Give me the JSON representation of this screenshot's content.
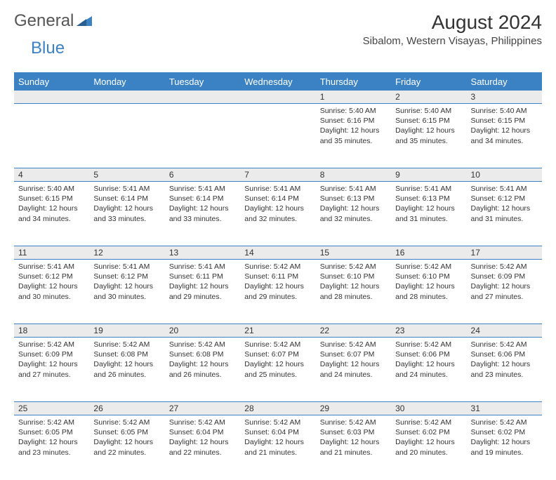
{
  "brand": {
    "general": "General",
    "blue": "Blue"
  },
  "header": {
    "month": "August 2024",
    "location": "Sibalom, Western Visayas, Philippines"
  },
  "colors": {
    "accent": "#3b82c4",
    "daynum_bg": "#ebebeb",
    "text": "#333333",
    "bg": "#ffffff"
  },
  "weekdays": [
    "Sunday",
    "Monday",
    "Tuesday",
    "Wednesday",
    "Thursday",
    "Friday",
    "Saturday"
  ],
  "calendar": {
    "type": "table",
    "first_weekday_index": 4,
    "days": [
      {
        "n": "1",
        "sunrise": "5:40 AM",
        "sunset": "6:16 PM",
        "dl": "12 hours and 35 minutes."
      },
      {
        "n": "2",
        "sunrise": "5:40 AM",
        "sunset": "6:15 PM",
        "dl": "12 hours and 35 minutes."
      },
      {
        "n": "3",
        "sunrise": "5:40 AM",
        "sunset": "6:15 PM",
        "dl": "12 hours and 34 minutes."
      },
      {
        "n": "4",
        "sunrise": "5:40 AM",
        "sunset": "6:15 PM",
        "dl": "12 hours and 34 minutes."
      },
      {
        "n": "5",
        "sunrise": "5:41 AM",
        "sunset": "6:14 PM",
        "dl": "12 hours and 33 minutes."
      },
      {
        "n": "6",
        "sunrise": "5:41 AM",
        "sunset": "6:14 PM",
        "dl": "12 hours and 33 minutes."
      },
      {
        "n": "7",
        "sunrise": "5:41 AM",
        "sunset": "6:14 PM",
        "dl": "12 hours and 32 minutes."
      },
      {
        "n": "8",
        "sunrise": "5:41 AM",
        "sunset": "6:13 PM",
        "dl": "12 hours and 32 minutes."
      },
      {
        "n": "9",
        "sunrise": "5:41 AM",
        "sunset": "6:13 PM",
        "dl": "12 hours and 31 minutes."
      },
      {
        "n": "10",
        "sunrise": "5:41 AM",
        "sunset": "6:12 PM",
        "dl": "12 hours and 31 minutes."
      },
      {
        "n": "11",
        "sunrise": "5:41 AM",
        "sunset": "6:12 PM",
        "dl": "12 hours and 30 minutes."
      },
      {
        "n": "12",
        "sunrise": "5:41 AM",
        "sunset": "6:12 PM",
        "dl": "12 hours and 30 minutes."
      },
      {
        "n": "13",
        "sunrise": "5:41 AM",
        "sunset": "6:11 PM",
        "dl": "12 hours and 29 minutes."
      },
      {
        "n": "14",
        "sunrise": "5:42 AM",
        "sunset": "6:11 PM",
        "dl": "12 hours and 29 minutes."
      },
      {
        "n": "15",
        "sunrise": "5:42 AM",
        "sunset": "6:10 PM",
        "dl": "12 hours and 28 minutes."
      },
      {
        "n": "16",
        "sunrise": "5:42 AM",
        "sunset": "6:10 PM",
        "dl": "12 hours and 28 minutes."
      },
      {
        "n": "17",
        "sunrise": "5:42 AM",
        "sunset": "6:09 PM",
        "dl": "12 hours and 27 minutes."
      },
      {
        "n": "18",
        "sunrise": "5:42 AM",
        "sunset": "6:09 PM",
        "dl": "12 hours and 27 minutes."
      },
      {
        "n": "19",
        "sunrise": "5:42 AM",
        "sunset": "6:08 PM",
        "dl": "12 hours and 26 minutes."
      },
      {
        "n": "20",
        "sunrise": "5:42 AM",
        "sunset": "6:08 PM",
        "dl": "12 hours and 26 minutes."
      },
      {
        "n": "21",
        "sunrise": "5:42 AM",
        "sunset": "6:07 PM",
        "dl": "12 hours and 25 minutes."
      },
      {
        "n": "22",
        "sunrise": "5:42 AM",
        "sunset": "6:07 PM",
        "dl": "12 hours and 24 minutes."
      },
      {
        "n": "23",
        "sunrise": "5:42 AM",
        "sunset": "6:06 PM",
        "dl": "12 hours and 24 minutes."
      },
      {
        "n": "24",
        "sunrise": "5:42 AM",
        "sunset": "6:06 PM",
        "dl": "12 hours and 23 minutes."
      },
      {
        "n": "25",
        "sunrise": "5:42 AM",
        "sunset": "6:05 PM",
        "dl": "12 hours and 23 minutes."
      },
      {
        "n": "26",
        "sunrise": "5:42 AM",
        "sunset": "6:05 PM",
        "dl": "12 hours and 22 minutes."
      },
      {
        "n": "27",
        "sunrise": "5:42 AM",
        "sunset": "6:04 PM",
        "dl": "12 hours and 22 minutes."
      },
      {
        "n": "28",
        "sunrise": "5:42 AM",
        "sunset": "6:04 PM",
        "dl": "12 hours and 21 minutes."
      },
      {
        "n": "29",
        "sunrise": "5:42 AM",
        "sunset": "6:03 PM",
        "dl": "12 hours and 21 minutes."
      },
      {
        "n": "30",
        "sunrise": "5:42 AM",
        "sunset": "6:02 PM",
        "dl": "12 hours and 20 minutes."
      },
      {
        "n": "31",
        "sunrise": "5:42 AM",
        "sunset": "6:02 PM",
        "dl": "12 hours and 19 minutes."
      }
    ]
  },
  "labels": {
    "sunrise": "Sunrise:",
    "sunset": "Sunset:",
    "daylight": "Daylight:"
  }
}
